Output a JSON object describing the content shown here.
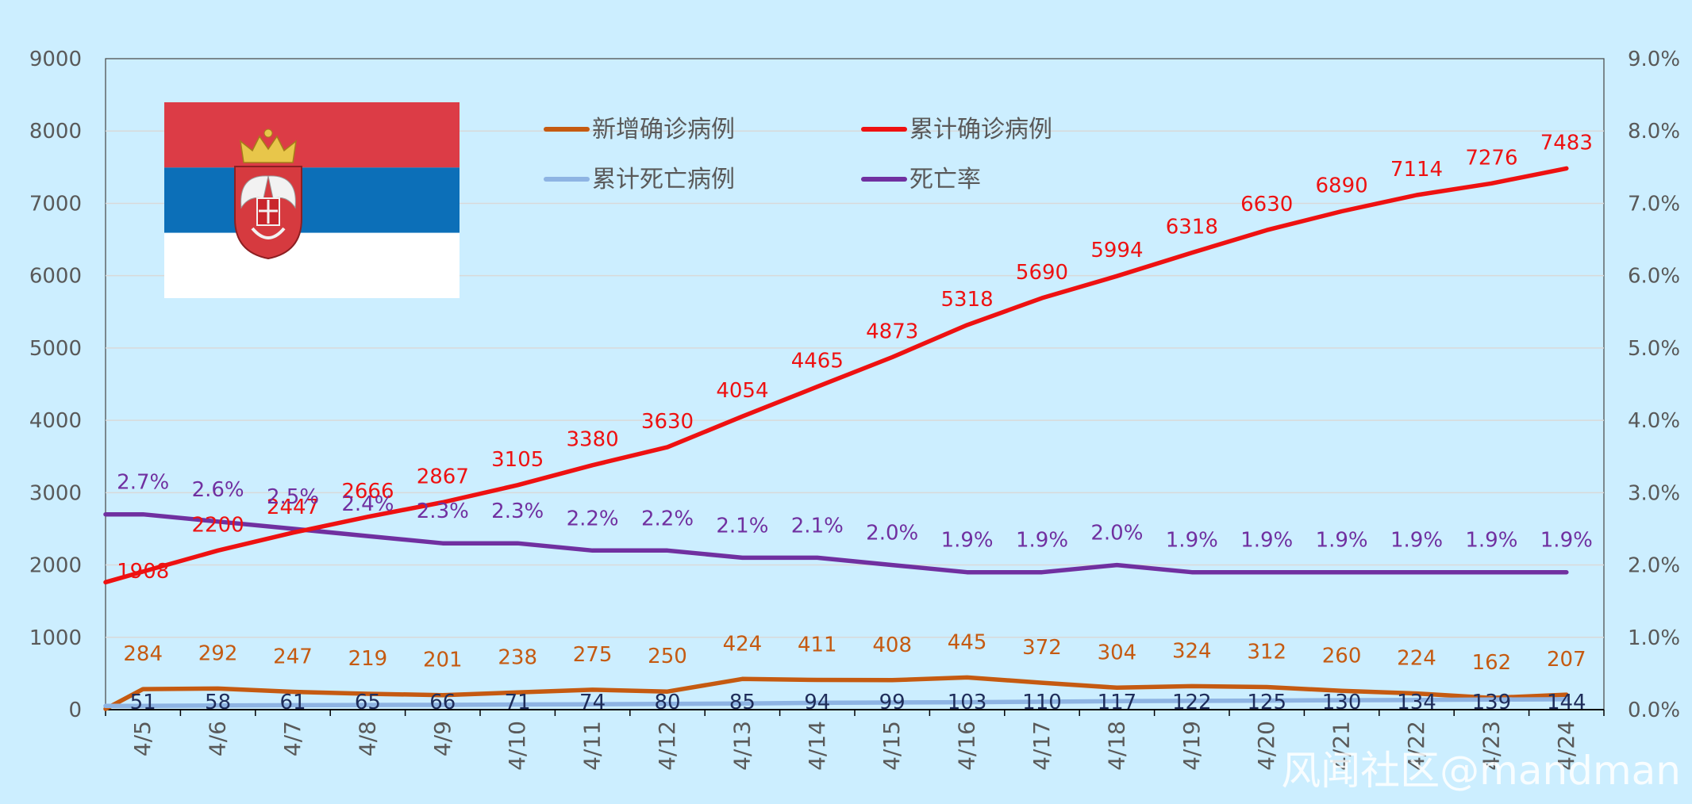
{
  "chart_data": {
    "type": "line",
    "categories": [
      "4/5",
      "4/6",
      "4/7",
      "4/8",
      "4/9",
      "4/10",
      "4/11",
      "4/12",
      "4/13",
      "4/14",
      "4/15",
      "4/16",
      "4/17",
      "4/18",
      "4/19",
      "4/20",
      "4/21",
      "4/22",
      "4/23",
      "4/24"
    ],
    "series": [
      {
        "name": "新增确诊病例",
        "axis": "left",
        "color": "#c55a11",
        "label_color": "#c55a11",
        "values": [
          284,
          292,
          247,
          219,
          201,
          238,
          275,
          250,
          424,
          411,
          408,
          445,
          372,
          304,
          324,
          312,
          260,
          224,
          162,
          207
        ],
        "labels": [
          "284",
          "292",
          "247",
          "219",
          "201",
          "238",
          "275",
          "250",
          "424",
          "411",
          "408",
          "445",
          "372",
          "304",
          "324",
          "312",
          "260",
          "224",
          "162",
          "207"
        ]
      },
      {
        "name": "累计确诊病例",
        "axis": "left",
        "color": "#ee1111",
        "label_color": "#ee1111",
        "values": [
          1908,
          2200,
          2447,
          2666,
          2867,
          3105,
          3380,
          3630,
          4054,
          4465,
          4873,
          5318,
          5690,
          5994,
          6318,
          6630,
          6890,
          7114,
          7276,
          7483
        ],
        "labels": [
          "1908",
          "2200",
          "2447",
          "2666",
          "2867",
          "3105",
          "3380",
          "3630",
          "4054",
          "4465",
          "4873",
          "5318",
          "5690",
          "5994",
          "6318",
          "6630",
          "6890",
          "7114",
          "7276",
          "7483"
        ]
      },
      {
        "name": "累计死亡病例",
        "axis": "left",
        "color": "#8eb4e3",
        "label_color": "#1f2d5a",
        "values": [
          51,
          58,
          61,
          65,
          66,
          71,
          74,
          80,
          85,
          94,
          99,
          103,
          110,
          117,
          122,
          125,
          130,
          134,
          139,
          144
        ],
        "labels": [
          "51",
          "58",
          "61",
          "65",
          "66",
          "71",
          "74",
          "80",
          "85",
          "94",
          "99",
          "103",
          "110",
          "117",
          "122",
          "125",
          "130",
          "134",
          "139",
          "144"
        ]
      },
      {
        "name": "死亡率",
        "axis": "right",
        "color": "#7030a0",
        "label_color": "#7030a0",
        "values": [
          0.027,
          0.026,
          0.025,
          0.024,
          0.023,
          0.023,
          0.022,
          0.022,
          0.021,
          0.021,
          0.02,
          0.019,
          0.019,
          0.02,
          0.019,
          0.019,
          0.019,
          0.019,
          0.019,
          0.019
        ],
        "labels": [
          "2.7%",
          "2.6%",
          "2.5%",
          "2.4%",
          "2.3%",
          "2.3%",
          "2.2%",
          "2.2%",
          "2.1%",
          "2.1%",
          "2.0%",
          "1.9%",
          "1.9%",
          "2.0%",
          "1.9%",
          "1.9%",
          "1.9%",
          "1.9%",
          "1.9%",
          "1.9%"
        ]
      }
    ],
    "ylim_left": [
      0,
      9000
    ],
    "yticks_left": [
      "0",
      "1000",
      "2000",
      "3000",
      "4000",
      "5000",
      "6000",
      "7000",
      "8000",
      "9000"
    ],
    "ylim_right": [
      0,
      0.09
    ],
    "yticks_right": [
      "0.0%",
      "1.0%",
      "2.0%",
      "3.0%",
      "4.0%",
      "5.0%",
      "6.0%",
      "7.0%",
      "8.0%",
      "9.0%"
    ],
    "grid": true,
    "legend_position": "top",
    "flag_colors": [
      "#dc3c46",
      "#0c6fb8",
      "#ffffff"
    ]
  },
  "watermark": "风闻社区@mandman"
}
